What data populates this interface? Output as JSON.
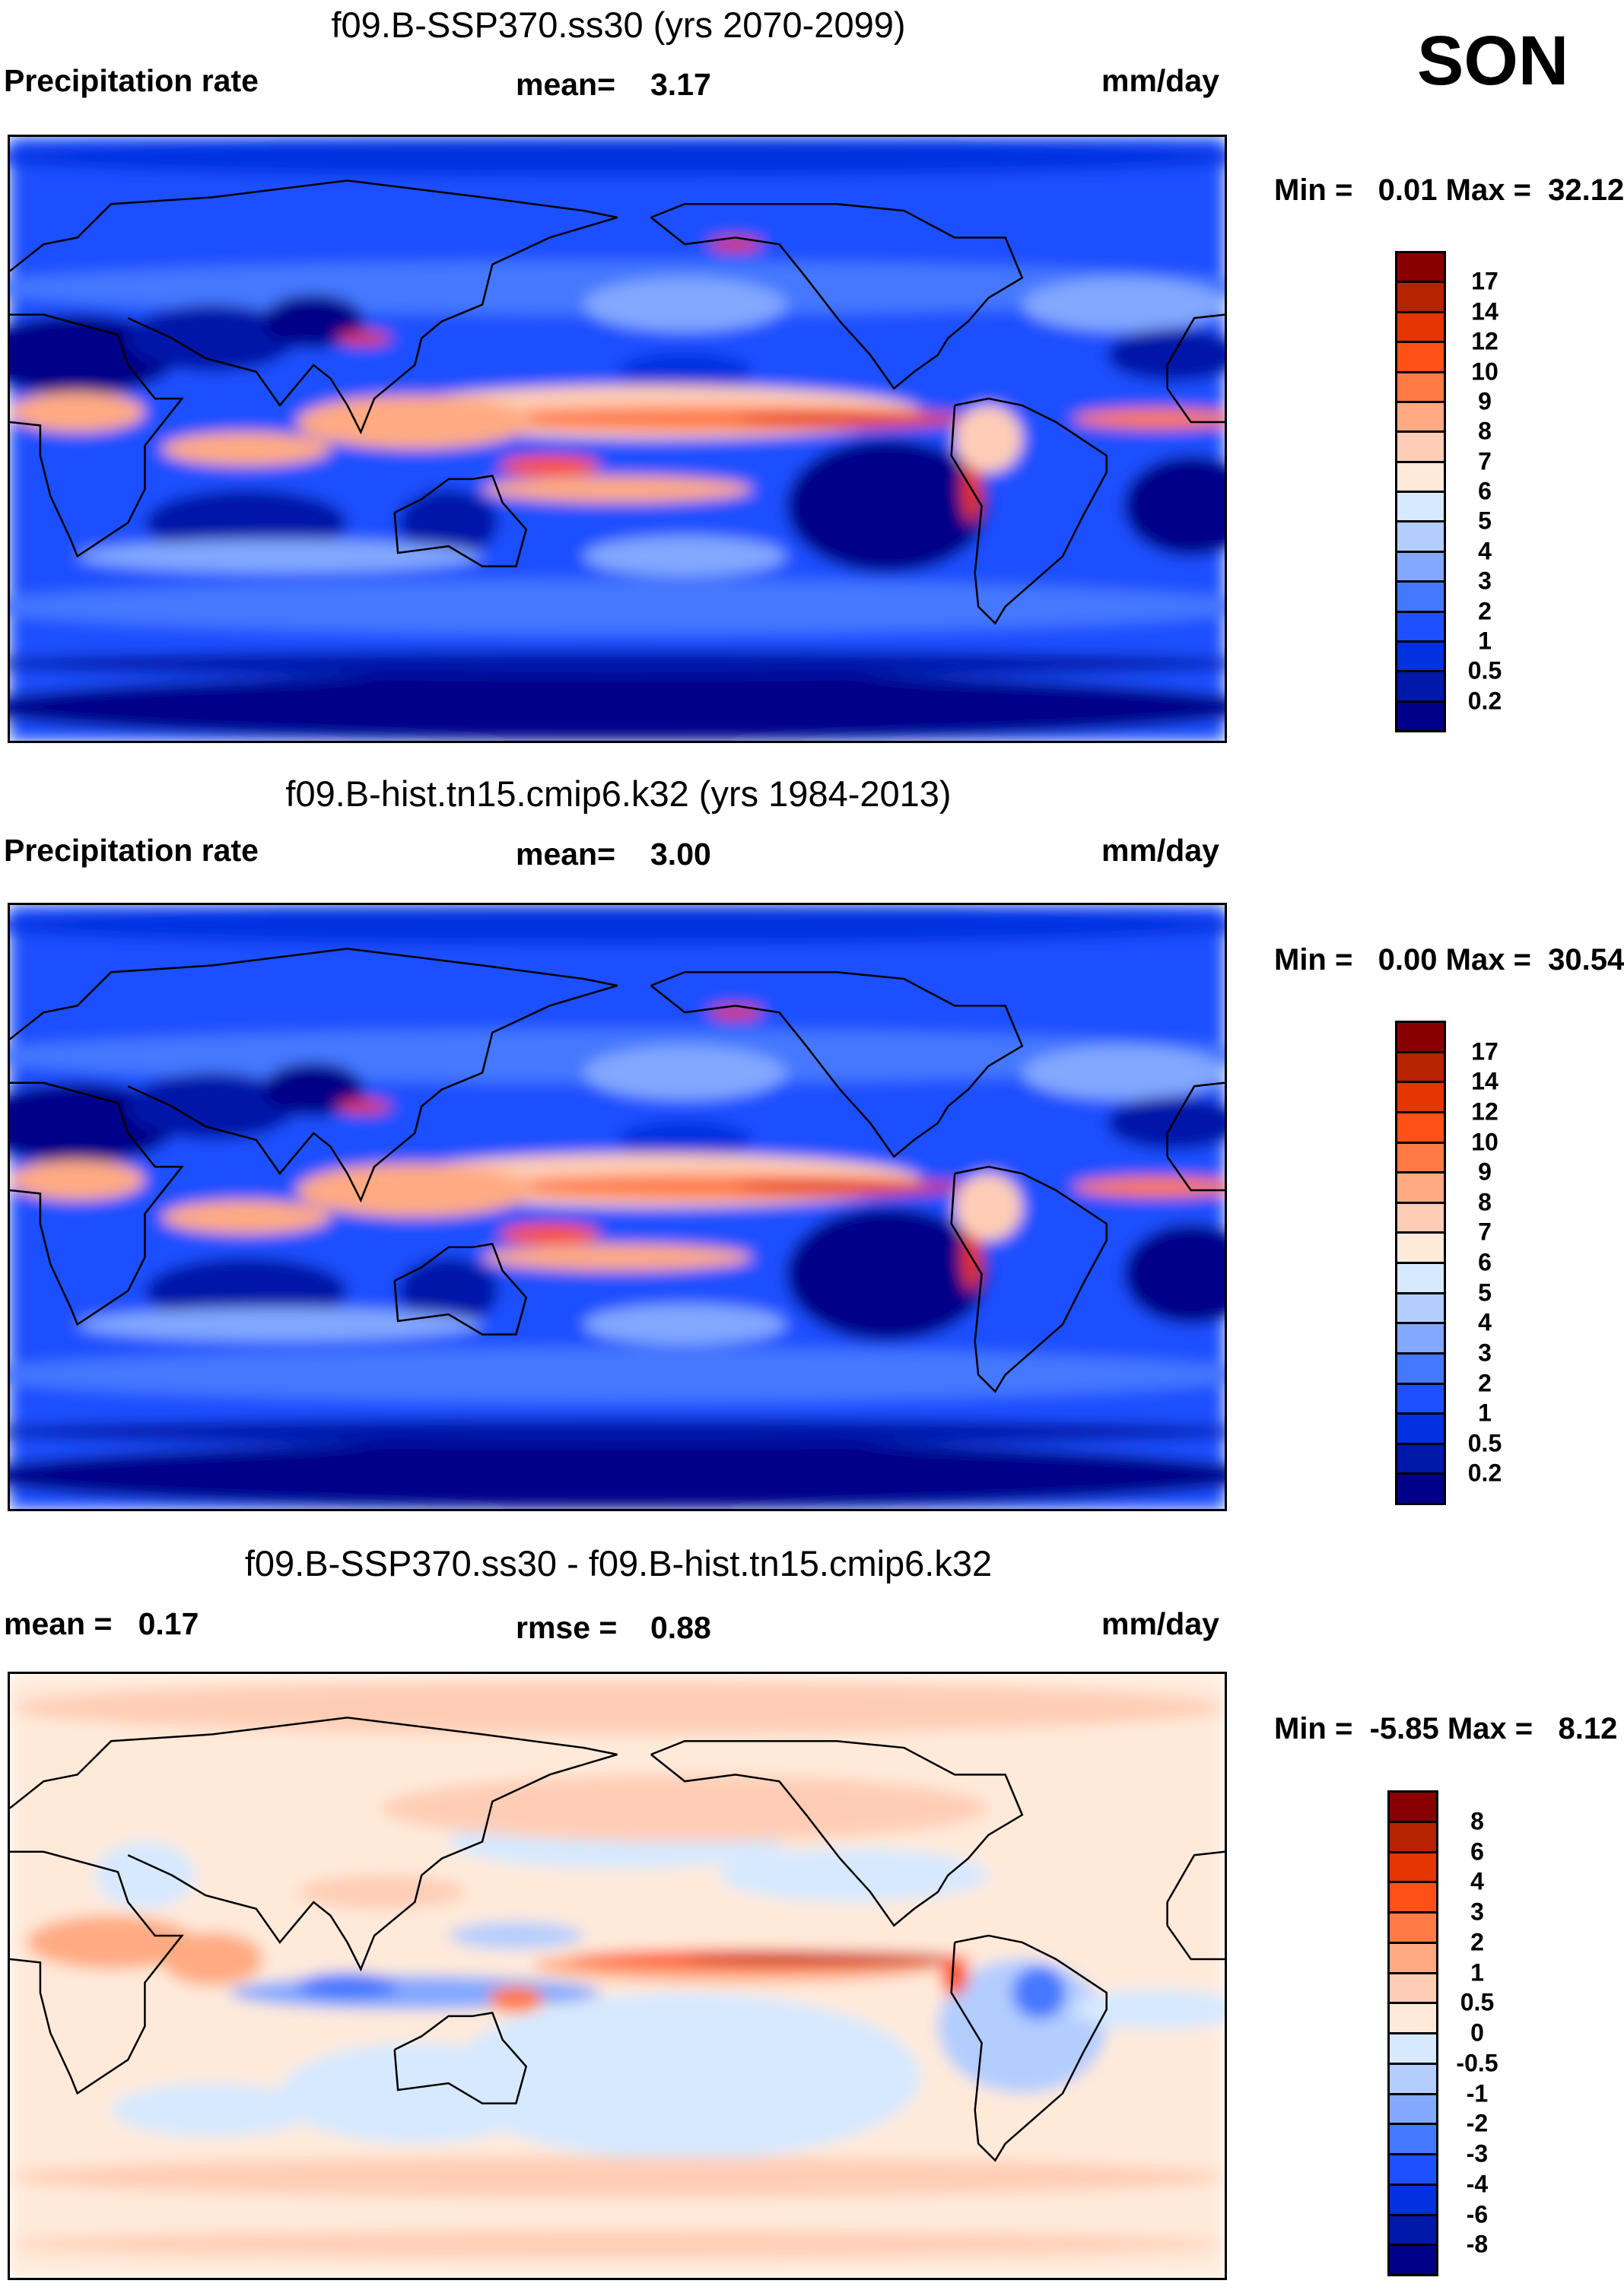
{
  "season": "SON",
  "chart_data": [
    {
      "type": "heatmap",
      "title": "f09.B-SSP370.ss30 (yrs 2070-2099)",
      "left_label": "Precipitation rate",
      "center_label": "mean=",
      "center_value": "3.17",
      "units": "mm/day",
      "min_max": "Min =   0.01 Max =  32.12",
      "min": 0.01,
      "max": 32.12,
      "colorbar_levels": [
        "17",
        "14",
        "12",
        "10",
        "9",
        "8",
        "7",
        "6",
        "5",
        "4",
        "3",
        "2",
        "1",
        "0.5",
        "0.2"
      ]
    },
    {
      "type": "heatmap",
      "title": "f09.B-hist.tn15.cmip6.k32 (yrs 1984-2013)",
      "left_label": "Precipitation rate",
      "center_label": "mean=",
      "center_value": "3.00",
      "units": "mm/day",
      "min_max": "Min =   0.00 Max =  30.54",
      "min": 0.0,
      "max": 30.54,
      "colorbar_levels": [
        "17",
        "14",
        "12",
        "10",
        "9",
        "8",
        "7",
        "6",
        "5",
        "4",
        "3",
        "2",
        "1",
        "0.5",
        "0.2"
      ]
    },
    {
      "type": "heatmap",
      "title": "f09.B-SSP370.ss30 - f09.B-hist.tn15.cmip6.k32",
      "left_label": "mean =   0.17",
      "center_label": "rmse =",
      "center_value": "0.88",
      "units": "mm/day",
      "min_max": "Min =  -5.85 Max =   8.12",
      "min": -5.85,
      "max": 8.12,
      "colorbar_levels": [
        "8",
        "6",
        "4",
        "3",
        "2",
        "1",
        "0.5",
        "0",
        "-0.5",
        "-1",
        "-2",
        "-3",
        "-4",
        "-6",
        "-8"
      ]
    }
  ],
  "colors": [
    "#880000",
    "#b52300",
    "#e53500",
    "#ff5018",
    "#ff7a45",
    "#ffaa82",
    "#ffcdb5",
    "#ffeada",
    "#d6e9ff",
    "#b3cdff",
    "#82a8ff",
    "#4478ff",
    "#1e50ff",
    "#0030e0",
    "#0018a8",
    "#000088"
  ]
}
